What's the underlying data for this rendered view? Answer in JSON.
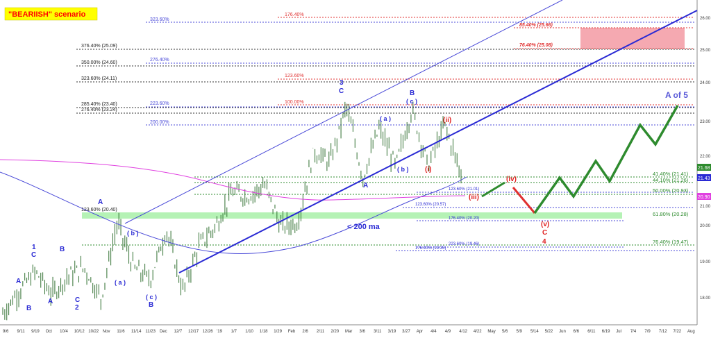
{
  "scenario_label": "\"BEARIISH\" scenario",
  "colors": {
    "wave_blue": "#2a2ad4",
    "wave_red": "#e02020",
    "projection_green": "#2e8b2e",
    "projection_red": "#e03030",
    "target_zone": "#f4a0a8",
    "support_band": "#a8f0a8",
    "ma_200": "#4a4ad8",
    "ma_magenta": "#e040e0",
    "price_bars": "#2e6e2e",
    "label_bg": "#ffff00",
    "label_text": "#ff0000"
  },
  "fib_levels_left": [
    {
      "text": "376.40% (25.09)"
    },
    {
      "text": "350.00% (24.60)"
    },
    {
      "text": "323.60% (24.11)"
    },
    {
      "text": "285.40% (23.40)"
    },
    {
      "text": "276.40% (23.24)"
    },
    {
      "text": "123.60% (20.40)"
    }
  ],
  "fib_levels_mid": [
    {
      "text": "323.60%"
    },
    {
      "text": "276.40%"
    },
    {
      "text": "223.60%"
    },
    {
      "text": "200.00%"
    }
  ],
  "fib_levels_red": [
    {
      "text": "176.40%"
    },
    {
      "text": "123.60%"
    },
    {
      "text": "100.00%"
    }
  ],
  "fib_levels_right": [
    {
      "text": "85.40% (25.66)"
    },
    {
      "text": "76.40% (25.08)"
    }
  ],
  "fib_levels_green": [
    {
      "text": "41.40% (21.41)"
    },
    {
      "text": "44.10% (21.26)"
    },
    {
      "text": "50.00% (20.93)"
    },
    {
      "text": "61.80% (20.28)"
    },
    {
      "text": "76.40% (19.47)"
    }
  ],
  "fib_levels_small": [
    {
      "text": "123.60% (21.01)"
    },
    {
      "text": "123.60% (20.57)"
    },
    {
      "text": "176.40% (20.20)"
    },
    {
      "text": "223.60% (19.46)"
    },
    {
      "text": "176.40% (19.35)"
    }
  ],
  "wave_labels_blue": [
    "A",
    "B",
    "1",
    "C",
    "A",
    "B",
    "C",
    "2",
    "A",
    "( b )",
    "( a )",
    "( c )",
    "B",
    "3",
    "C",
    "A",
    "( a )",
    "( b )",
    "B",
    "( c )",
    "A of 5",
    "(c)"
  ],
  "wave_labels_red": [
    "(ii)",
    "(i)",
    "(iv)",
    "(iii)",
    "(v)",
    "C",
    "4"
  ],
  "ma_label": "< 200 ma",
  "y_axis_ticks": [
    "26.00",
    "25.00",
    "24.00",
    "23.00",
    "22.00",
    "21.00",
    "20.00",
    "19.00",
    "18.00"
  ],
  "price_tags": {
    "green": "21.68",
    "blue": "21.43",
    "red": "20.90"
  },
  "x_axis_ticks": [
    "9/6",
    "9/11",
    "9/19",
    "Oct",
    "10/4",
    "10/12",
    "10/22",
    "Nov",
    "11/6",
    "11/14",
    "11/23",
    "Dec",
    "12/7",
    "12/17",
    "12/26",
    "'19",
    "1/7",
    "1/10",
    "1/18",
    "1/29",
    "Feb",
    "2/6",
    "2/11",
    "2/20",
    "Mar",
    "3/6",
    "3/11",
    "3/19",
    "3/27",
    "Apr",
    "4/4",
    "4/9",
    "4/12",
    "4/22",
    "May",
    "5/6",
    "5/9",
    "5/14",
    "5/22",
    "Jun",
    "6/6",
    "6/11",
    "6/19",
    "Jul",
    "7/4",
    "7/9",
    "7/12",
    "7/22",
    "Aug"
  ],
  "chart_data": {
    "type": "line",
    "title": "\"BEARIISH\" scenario",
    "ylim": [
      17.7,
      26.3
    ],
    "y_ticks": [
      18,
      19,
      20,
      21,
      22,
      23,
      24,
      25,
      26
    ],
    "series": [
      {
        "values": [
          18.0,
          18.6,
          19.1,
          18.5,
          19.0,
          19.2,
          18.4,
          20.4,
          19.2,
          18.9,
          20.2,
          18.6,
          19.8,
          20.3,
          21.2,
          21.1,
          21.4,
          20.3,
          20.4,
          22.3,
          22.0,
          23.5,
          21.6,
          22.9,
          21.9,
          23.4,
          21.9,
          23.0,
          21.68
        ]
      },
      {
        "values": [
          21.68,
          20.93,
          21.26,
          20.28,
          21.4,
          20.93,
          21.9,
          21.5,
          22.9,
          22.3,
          23.4
        ]
      }
    ]
  }
}
